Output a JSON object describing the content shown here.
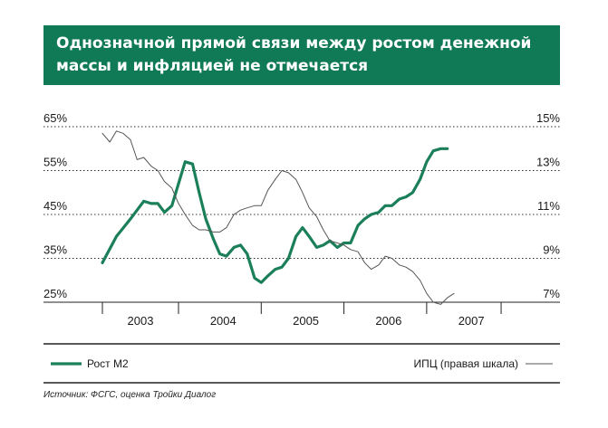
{
  "title": {
    "line1": "Однозначной прямой связи между ростом денежной",
    "line2": "массы и инфляцией не отмечается"
  },
  "source": "Источник: ФСГС, оценка Тройки Диалог",
  "colors": {
    "accent": "#0f7a55",
    "m2": "#1b7f5a",
    "cpi": "#555555"
  },
  "chart_data": {
    "type": "line",
    "x_ticks": [
      "2003",
      "2004",
      "2005",
      "2006",
      "2007"
    ],
    "y_left": {
      "ticks": [
        "65%",
        "55%",
        "45%",
        "35%",
        "25%"
      ],
      "range": [
        25,
        65
      ]
    },
    "y_right": {
      "ticks": [
        "15%",
        "13%",
        "11%",
        "9%",
        "7%"
      ],
      "range": [
        7,
        15
      ]
    },
    "grid": "dotted horizontal",
    "legend_position": "bottom",
    "series": [
      {
        "name": "Рост М2",
        "axis": "left",
        "x": [
          2002.58,
          2002.75,
          2002.92,
          2003.08,
          2003.17,
          2003.25,
          2003.33,
          2003.42,
          2003.5,
          2003.58,
          2003.67,
          2003.75,
          2003.83,
          2003.92,
          2004.0,
          2004.08,
          2004.17,
          2004.25,
          2004.33,
          2004.42,
          2004.5,
          2004.58,
          2004.67,
          2004.75,
          2004.83,
          2004.92,
          2005.0,
          2005.08,
          2005.17,
          2005.25,
          2005.33,
          2005.42,
          2005.5,
          2005.58,
          2005.67,
          2005.75,
          2005.83,
          2005.92,
          2006.0,
          2006.08,
          2006.17,
          2006.25,
          2006.33,
          2006.42,
          2006.5,
          2006.58,
          2006.67,
          2006.75
        ],
        "values": [
          34,
          40,
          44,
          48,
          47.5,
          47.5,
          45.5,
          47,
          52,
          57,
          56.5,
          50,
          44,
          39.5,
          36,
          35.5,
          37.5,
          38,
          36,
          30.5,
          29.5,
          31,
          32.5,
          33,
          35,
          40,
          42,
          40,
          37.5,
          38,
          39,
          37.5,
          38.5,
          38.5,
          42.5,
          44,
          45,
          45.5,
          47,
          47,
          48.5,
          49,
          50,
          53,
          57,
          59.5,
          60,
          60
        ]
      },
      {
        "name": "ИПЦ (правая шкала)",
        "axis": "right",
        "x": [
          2002.58,
          2002.67,
          2002.75,
          2002.83,
          2002.92,
          2003.0,
          2003.08,
          2003.17,
          2003.25,
          2003.33,
          2003.42,
          2003.5,
          2003.58,
          2003.67,
          2003.75,
          2003.83,
          2003.92,
          2004.0,
          2004.08,
          2004.17,
          2004.25,
          2004.33,
          2004.42,
          2004.5,
          2004.58,
          2004.67,
          2004.75,
          2004.83,
          2004.92,
          2005.0,
          2005.08,
          2005.17,
          2005.25,
          2005.33,
          2005.42,
          2005.5,
          2005.58,
          2005.67,
          2005.75,
          2005.83,
          2005.92,
          2006.0,
          2006.08,
          2006.17,
          2006.25,
          2006.33,
          2006.42,
          2006.5,
          2006.58,
          2006.67,
          2006.75,
          2006.83
        ],
        "values": [
          14.7,
          14.3,
          14.8,
          14.7,
          14.4,
          13.5,
          13.6,
          13.2,
          13.0,
          12.5,
          12.2,
          11.5,
          11.0,
          10.5,
          10.3,
          10.3,
          10.2,
          10.2,
          10.4,
          11.0,
          11.2,
          11.3,
          11.4,
          11.4,
          12.1,
          12.6,
          13.0,
          12.9,
          12.6,
          12.0,
          11.3,
          10.9,
          10.3,
          9.8,
          9.7,
          9.6,
          9.4,
          9.3,
          8.8,
          8.5,
          8.7,
          9.1,
          9.0,
          8.7,
          8.6,
          8.4,
          8.0,
          7.4,
          7.0,
          6.9,
          7.2,
          7.4
        ]
      }
    ]
  }
}
